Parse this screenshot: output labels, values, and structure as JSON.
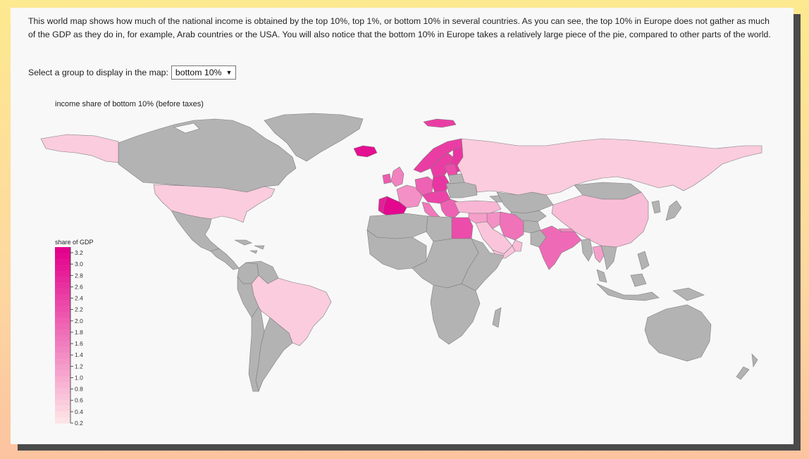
{
  "intro_text": "This world map shows how much of the national income is obtained by the top 10%, top 1%, or bottom 10% in several countries. As you can see, the top 10% in Europe does not gather as much of the GDP as they do in, for example, Arab countries or the USA. You will also notice that the bottom 10% in Europe takes a relatively large piece of the pie, compared to other parts of the world.",
  "selector": {
    "label": "Select a group to display in the map:",
    "selected": "bottom 10%"
  },
  "map": {
    "title": "income share of bottom 10% (before taxes)",
    "no_data_color": "#b3b3b3",
    "ocean_color": "#f8f8f8"
  },
  "legend": {
    "title": "share of GDP",
    "ticks": [
      "3.2",
      "3.0",
      "2.8",
      "2.6",
      "2.4",
      "2.2",
      "2.0",
      "1.8",
      "1.6",
      "1.4",
      "1.2",
      "1.0",
      "0.8",
      "0.6",
      "0.4",
      "0.2"
    ],
    "color_low": "#fde3e6",
    "color_high": "#e3008c"
  },
  "countries": [
    {
      "name": "Canada",
      "value": null
    },
    {
      "name": "Greenland",
      "value": null
    },
    {
      "name": "Alaska",
      "value": 0.5
    },
    {
      "name": "United States",
      "value": 0.5
    },
    {
      "name": "Mexico",
      "value": null
    },
    {
      "name": "Central America",
      "value": null
    },
    {
      "name": "Caribbean",
      "value": null
    },
    {
      "name": "Colombia",
      "value": null
    },
    {
      "name": "Venezuela",
      "value": null
    },
    {
      "name": "Peru",
      "value": null
    },
    {
      "name": "Brazil",
      "value": 0.5
    },
    {
      "name": "Argentina",
      "value": null
    },
    {
      "name": "Chile",
      "value": null
    },
    {
      "name": "Iceland",
      "value": 3.0
    },
    {
      "name": "Norway",
      "value": 2.4
    },
    {
      "name": "Sweden",
      "value": 2.4
    },
    {
      "name": "Finland",
      "value": 2.5
    },
    {
      "name": "Svalbard",
      "value": 2.4
    },
    {
      "name": "United Kingdom",
      "value": 1.5
    },
    {
      "name": "Ireland",
      "value": 2.0
    },
    {
      "name": "France",
      "value": 1.3
    },
    {
      "name": "Spain",
      "value": 3.1
    },
    {
      "name": "Portugal",
      "value": 2.8
    },
    {
      "name": "Germany",
      "value": 1.9
    },
    {
      "name": "Poland",
      "value": 2.5
    },
    {
      "name": "Central Europe",
      "value": 2.3
    },
    {
      "name": "Italy",
      "value": 1.6
    },
    {
      "name": "Balkans",
      "value": 1.9
    },
    {
      "name": "Baltics",
      "value": 2.2
    },
    {
      "name": "Ukraine",
      "value": null
    },
    {
      "name": "Belarus",
      "value": null
    },
    {
      "name": "Russia",
      "value": 0.5
    },
    {
      "name": "Turkey",
      "value": 0.8
    },
    {
      "name": "Caucasus",
      "value": null
    },
    {
      "name": "Kazakhstan",
      "value": null
    },
    {
      "name": "Central Asia",
      "value": null
    },
    {
      "name": "Mongolia",
      "value": null
    },
    {
      "name": "China",
      "value": 0.7
    },
    {
      "name": "Korea",
      "value": null
    },
    {
      "name": "Japan",
      "value": null
    },
    {
      "name": "Iran",
      "value": 1.7
    },
    {
      "name": "Iraq",
      "value": 1.3
    },
    {
      "name": "Syria",
      "value": 1.1
    },
    {
      "name": "Saudi Arabia",
      "value": 0.6
    },
    {
      "name": "Yemen",
      "value": 0.6
    },
    {
      "name": "Oman",
      "value": 0.7
    },
    {
      "name": "Afghanistan",
      "value": null
    },
    {
      "name": "Pakistan",
      "value": null
    },
    {
      "name": "India",
      "value": 1.8
    },
    {
      "name": "Nepal",
      "value": 1.4
    },
    {
      "name": "Myanmar",
      "value": null
    },
    {
      "name": "Thailand",
      "value": 1.1
    },
    {
      "name": "Indochina",
      "value": null
    },
    {
      "name": "Malaysia",
      "value": null
    },
    {
      "name": "Indonesia",
      "value": null
    },
    {
      "name": "Philippines",
      "value": null
    },
    {
      "name": "Papua New Guinea",
      "value": null
    },
    {
      "name": "Australia",
      "value": null
    },
    {
      "name": "New Zealand",
      "value": null
    },
    {
      "name": "Egypt",
      "value": 2.2
    },
    {
      "name": "Libya",
      "value": null
    },
    {
      "name": "North Africa",
      "value": null
    },
    {
      "name": "West Africa",
      "value": null
    },
    {
      "name": "Central Africa",
      "value": null
    },
    {
      "name": "East Africa",
      "value": null
    },
    {
      "name": "Southern Africa",
      "value": null
    },
    {
      "name": "Madagascar",
      "value": null
    }
  ]
}
